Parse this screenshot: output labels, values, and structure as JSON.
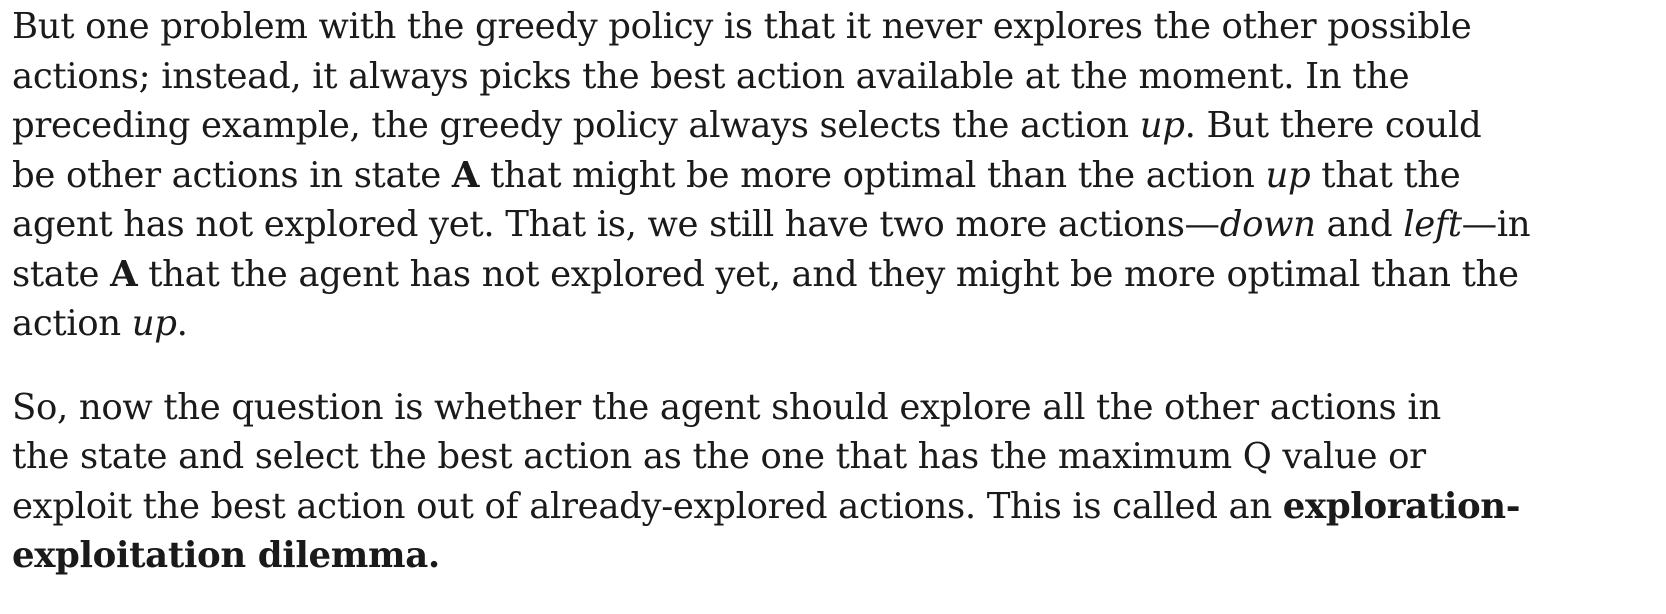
{
  "paragraph1": {
    "line1": "But one problem with the greedy policy is that it never explores the other possible",
    "line2": "actions; instead, it always picks the best action available at the moment. In the",
    "line3_a": "preceding example, the greedy policy always selects the action ",
    "line3_up": "up",
    "line3_b": ". But there could",
    "line4_a": "be other actions in state ",
    "line4_A": "A",
    "line4_b": " that might be more optimal than the action ",
    "line4_up": "up",
    "line4_c": " that the",
    "line5_a": "agent has not explored yet. That is, we still have two more actions—",
    "line5_down": "down",
    "line5_and": " and ",
    "line5_left": "left",
    "line5_b": "—in",
    "line6_a": "state ",
    "line6_A": "A",
    "line6_b": " that the agent has not explored yet, and they might be more optimal than the",
    "line7_a": "action ",
    "line7_up": "up",
    "line7_b": "."
  },
  "paragraph2": {
    "line1": "So, now the question is whether the agent should explore all the other actions in",
    "line2": "the state and select the best action as the one that has the maximum Q value or",
    "line3_a": "exploit the best action out of already-explored actions. This is called an ",
    "line3_bold": "exploration-",
    "line4_bold": "exploitation dilemma."
  }
}
